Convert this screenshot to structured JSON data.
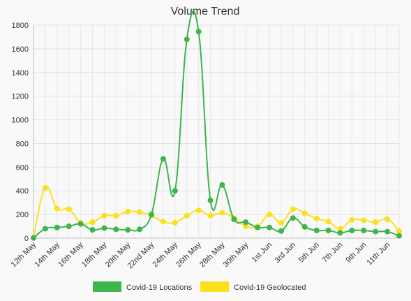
{
  "chart_data": {
    "type": "line",
    "title": "Volume Trend",
    "xlabel": "",
    "ylabel": "",
    "ylim": [
      0,
      1800
    ],
    "yticks": [
      0,
      200,
      400,
      600,
      800,
      1000,
      1200,
      1400,
      1600,
      1800
    ],
    "grid": true,
    "legend_position": "bottom",
    "x": [
      "12th May",
      "13th May",
      "14th May",
      "15th May",
      "16th May",
      "17th May",
      "18th May",
      "19th May",
      "20th May",
      "21st May",
      "22nd May",
      "23rd May",
      "24th May",
      "25th May",
      "26th May",
      "27th May",
      "28th May",
      "29th May",
      "30th May",
      "31st May",
      "1st Jun",
      "2nd Jun",
      "3rd Jun",
      "4th Jun",
      "5th Jun",
      "6th Jun",
      "7th Jun",
      "8th Jun",
      "9th Jun",
      "10th Jun",
      "11th Jun",
      "12th Jun"
    ],
    "x_tick_labels": [
      "12th May",
      "14th May",
      "16th May",
      "18th May",
      "20th May",
      "22nd May",
      "24th May",
      "26th May",
      "28th May",
      "30th May",
      "1st Jun",
      "3rd Jun",
      "5th Jun",
      "7th Jun",
      "9th Jun",
      "11th Jun"
    ],
    "series": [
      {
        "name": "Covid-19 Locations",
        "color": "#3cb54a",
        "values": [
          2,
          80,
          90,
          100,
          120,
          70,
          85,
          75,
          70,
          75,
          200,
          670,
          400,
          1680,
          1745,
          320,
          450,
          160,
          135,
          90,
          90,
          60,
          170,
          95,
          65,
          65,
          45,
          65,
          65,
          55,
          55,
          20
        ]
      },
      {
        "name": "Covid-19 Geolocated",
        "color": "#fde01d",
        "values": [
          2,
          425,
          250,
          245,
          130,
          135,
          190,
          190,
          225,
          220,
          190,
          140,
          130,
          190,
          235,
          190,
          215,
          170,
          100,
          100,
          200,
          130,
          245,
          210,
          165,
          140,
          80,
          155,
          150,
          135,
          160,
          60
        ]
      }
    ]
  }
}
